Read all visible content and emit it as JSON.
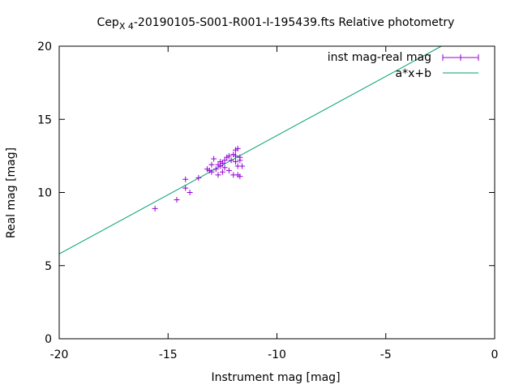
{
  "chart_data": {
    "type": "scatter",
    "title": {
      "main": "Cep",
      "subscript": "X 4",
      "rest": "-20190105-S001-R001-I-195439.fts Relative photometry"
    },
    "xlabel": "Instrument mag [mag]",
    "ylabel": "Real mag [mag]",
    "xlim": [
      -20,
      0
    ],
    "ylim": [
      0,
      20
    ],
    "x_ticks": [
      -20,
      -15,
      -10,
      -5,
      0
    ],
    "x_tick_labels": [
      "-20",
      "-15",
      "-10",
      "-5",
      "0"
    ],
    "y_ticks": [
      0,
      5,
      10,
      15,
      20
    ],
    "y_tick_labels": [
      "0",
      "5",
      "10",
      "15",
      "20"
    ],
    "grid": false,
    "legend_position": "top-right",
    "series": [
      {
        "name": "inst mag-real mag",
        "kind": "points-with-errorbars",
        "color": "#9400d3",
        "points": [
          {
            "x": -15.6,
            "y": 8.9
          },
          {
            "x": -14.6,
            "y": 9.5
          },
          {
            "x": -14.2,
            "y": 10.3
          },
          {
            "x": -14.2,
            "y": 10.9
          },
          {
            "x": -14.0,
            "y": 10.0
          },
          {
            "x": -13.6,
            "y": 11.0
          },
          {
            "x": -13.2,
            "y": 11.6
          },
          {
            "x": -13.1,
            "y": 11.5
          },
          {
            "x": -13.0,
            "y": 11.9
          },
          {
            "x": -13.0,
            "y": 11.4
          },
          {
            "x": -12.9,
            "y": 12.3
          },
          {
            "x": -12.8,
            "y": 11.6
          },
          {
            "x": -12.7,
            "y": 11.9
          },
          {
            "x": -12.7,
            "y": 11.2
          },
          {
            "x": -12.6,
            "y": 12.1
          },
          {
            "x": -12.6,
            "y": 11.8
          },
          {
            "x": -12.5,
            "y": 12.0
          },
          {
            "x": -12.5,
            "y": 11.4
          },
          {
            "x": -12.4,
            "y": 12.2
          },
          {
            "x": -12.4,
            "y": 11.7
          },
          {
            "x": -12.3,
            "y": 12.4
          },
          {
            "x": -12.2,
            "y": 11.5
          },
          {
            "x": -12.2,
            "y": 12.5
          },
          {
            "x": -12.1,
            "y": 12.2
          },
          {
            "x": -12.0,
            "y": 12.6
          },
          {
            "x": -12.0,
            "y": 11.2
          },
          {
            "x": -11.9,
            "y": 12.1
          },
          {
            "x": -11.9,
            "y": 12.5
          },
          {
            "x": -11.9,
            "y": 12.9
          },
          {
            "x": -11.8,
            "y": 11.8
          },
          {
            "x": -11.8,
            "y": 13.0
          },
          {
            "x": -11.8,
            "y": 11.2
          },
          {
            "x": -11.7,
            "y": 12.4
          },
          {
            "x": -11.7,
            "y": 11.1
          },
          {
            "x": -11.7,
            "y": 12.2
          },
          {
            "x": -11.6,
            "y": 11.8
          }
        ]
      },
      {
        "name": "a*x+b",
        "kind": "line",
        "color": "#009e73",
        "x": [
          -20,
          -2.45
        ],
        "y": [
          5.8,
          20.0
        ]
      }
    ]
  }
}
